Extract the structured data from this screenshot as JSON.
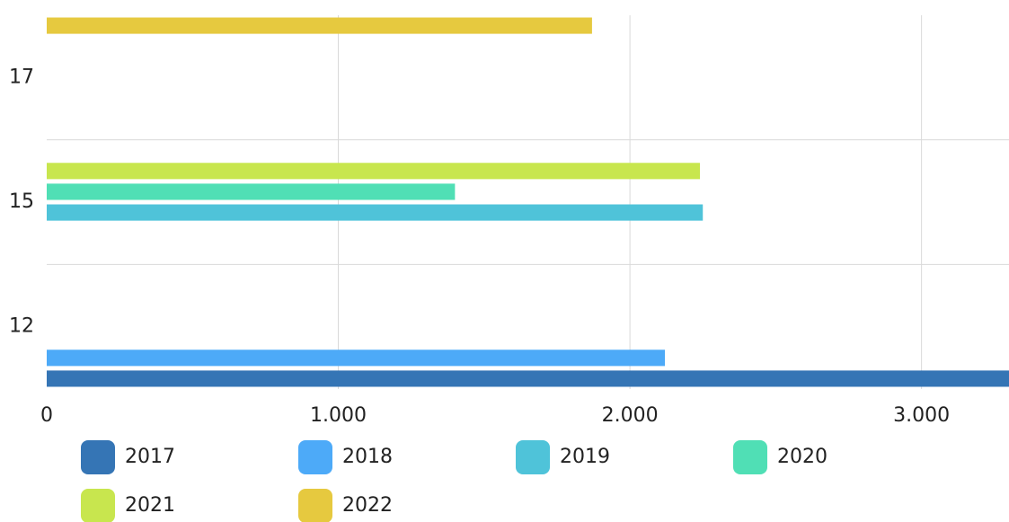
{
  "chart_data": {
    "type": "bar",
    "orientation": "horizontal",
    "categories": [
      "12",
      "15",
      "17"
    ],
    "series": [
      {
        "name": "2017",
        "color": "#3575b5",
        "values": [
          3300,
          null,
          null
        ]
      },
      {
        "name": "2018",
        "color": "#4daaf8",
        "values": [
          2120,
          null,
          null
        ]
      },
      {
        "name": "2019",
        "color": "#4fc3d9",
        "values": [
          null,
          2250,
          null
        ]
      },
      {
        "name": "2020",
        "color": "#50dfb5",
        "values": [
          null,
          1400,
          null
        ]
      },
      {
        "name": "2021",
        "color": "#c8e64e",
        "values": [
          null,
          2240,
          null
        ]
      },
      {
        "name": "2022",
        "color": "#e6c93f",
        "values": [
          null,
          null,
          1870
        ]
      }
    ],
    "xlim": [
      0,
      3300
    ],
    "xticks": [
      0,
      {
        "value": 1000,
        "label": "1.000"
      },
      {
        "value": 2000,
        "label": "2.000"
      },
      {
        "value": 3000,
        "label": "3.000"
      }
    ],
    "grid": true,
    "legend": "bottom"
  }
}
